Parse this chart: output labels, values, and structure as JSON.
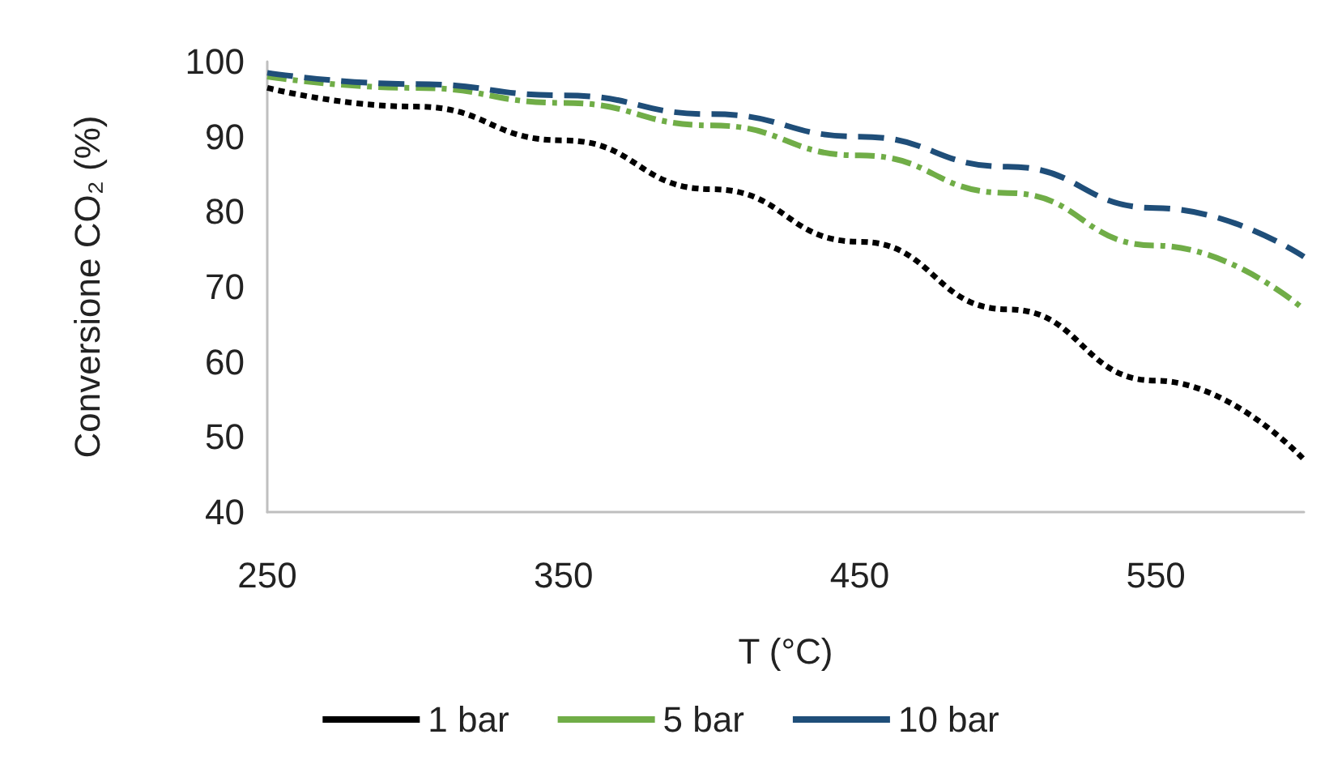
{
  "chart_data": {
    "type": "line",
    "xlabel": "T (°C)",
    "ylabel": "Conversione CO₂ (%)",
    "x": [
      250,
      300,
      350,
      400,
      450,
      500,
      550,
      600
    ],
    "series": [
      {
        "name": "1 bar",
        "color": "#000000",
        "line_style": "dotted",
        "values": [
          96.5,
          94,
          89.5,
          83,
          76,
          67,
          57.5,
          47
        ]
      },
      {
        "name": "5 bar",
        "color": "#70ad47",
        "line_style": "dashdot",
        "values": [
          98,
          96.5,
          94.5,
          91.5,
          87.5,
          82.5,
          75.5,
          67
        ]
      },
      {
        "name": "10 bar",
        "color": "#1f4e79",
        "line_style": "dashed",
        "values": [
          98.5,
          97,
          95.5,
          93,
          90,
          86,
          80.5,
          74
        ]
      }
    ],
    "xlim": [
      250,
      600
    ],
    "xticks": [
      250,
      350,
      450,
      550
    ],
    "ylim": [
      40,
      100
    ],
    "yticks": [
      40,
      50,
      60,
      70,
      80,
      90,
      100
    ],
    "grid": false,
    "legend": "bottom",
    "marker": "none"
  }
}
